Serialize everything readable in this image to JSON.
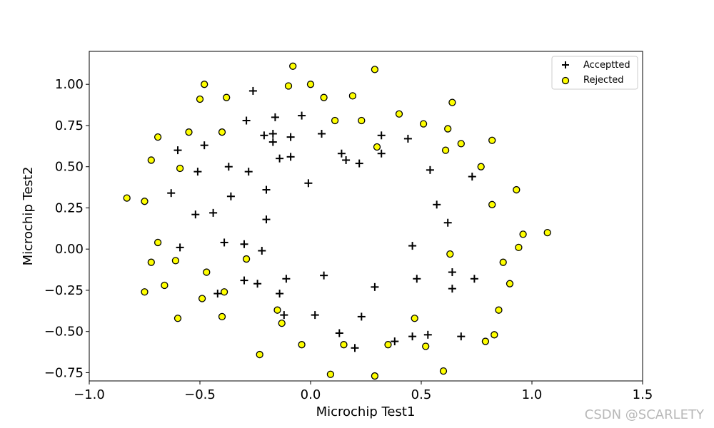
{
  "chart_data": {
    "type": "scatter",
    "title": "",
    "xlabel": "Microchip Test1",
    "ylabel": "Microchip Test2",
    "xlim": [
      -1.0,
      1.5
    ],
    "ylim": [
      -0.8,
      1.2
    ],
    "xticks": [
      -1.0,
      -0.5,
      0.0,
      0.5,
      1.0,
      1.5
    ],
    "xtick_labels": [
      "−1.0",
      "−0.5",
      "0.0",
      "0.5",
      "1.0",
      "1.5"
    ],
    "yticks": [
      -0.75,
      -0.5,
      -0.25,
      0.0,
      0.25,
      0.5,
      0.75,
      1.0
    ],
    "ytick_labels": [
      "−0.75",
      "−0.50",
      "−0.25",
      "0.00",
      "0.25",
      "0.50",
      "0.75",
      "1.00"
    ],
    "grid": false,
    "legend_position": "top-right",
    "series": [
      {
        "name": "Acceptted",
        "marker": "plus",
        "color": "#000000",
        "points": [
          [
            -0.26,
            0.96
          ],
          [
            -0.29,
            0.78
          ],
          [
            -0.16,
            0.8
          ],
          [
            -0.04,
            0.81
          ],
          [
            -0.21,
            0.69
          ],
          [
            -0.17,
            0.7
          ],
          [
            -0.09,
            0.68
          ],
          [
            0.05,
            0.7
          ],
          [
            0.32,
            0.69
          ],
          [
            0.44,
            0.67
          ],
          [
            -0.48,
            0.63
          ],
          [
            -0.17,
            0.65
          ],
          [
            -0.6,
            0.6
          ],
          [
            0.14,
            0.58
          ],
          [
            0.32,
            0.58
          ],
          [
            -0.14,
            0.55
          ],
          [
            -0.09,
            0.56
          ],
          [
            0.16,
            0.54
          ],
          [
            0.22,
            0.52
          ],
          [
            -0.37,
            0.5
          ],
          [
            -0.51,
            0.47
          ],
          [
            -0.28,
            0.47
          ],
          [
            0.54,
            0.48
          ],
          [
            0.73,
            0.44
          ],
          [
            -0.01,
            0.4
          ],
          [
            -0.2,
            0.36
          ],
          [
            -0.63,
            0.34
          ],
          [
            -0.36,
            0.32
          ],
          [
            -0.52,
            0.21
          ],
          [
            -0.44,
            0.22
          ],
          [
            0.57,
            0.27
          ],
          [
            -0.2,
            0.18
          ],
          [
            0.62,
            0.16
          ],
          [
            -0.39,
            0.04
          ],
          [
            -0.3,
            0.03
          ],
          [
            -0.59,
            0.01
          ],
          [
            -0.22,
            -0.01
          ],
          [
            0.46,
            0.02
          ],
          [
            -0.11,
            -0.18
          ],
          [
            0.06,
            -0.16
          ],
          [
            0.48,
            -0.18
          ],
          [
            0.64,
            -0.14
          ],
          [
            0.74,
            -0.18
          ],
          [
            -0.3,
            -0.19
          ],
          [
            -0.24,
            -0.21
          ],
          [
            0.29,
            -0.23
          ],
          [
            0.64,
            -0.24
          ],
          [
            -0.42,
            -0.27
          ],
          [
            -0.14,
            -0.27
          ],
          [
            -0.12,
            -0.4
          ],
          [
            0.02,
            -0.4
          ],
          [
            0.23,
            -0.41
          ],
          [
            0.13,
            -0.51
          ],
          [
            0.46,
            -0.53
          ],
          [
            0.53,
            -0.52
          ],
          [
            0.68,
            -0.53
          ],
          [
            0.2,
            -0.6
          ],
          [
            0.38,
            -0.56
          ]
        ]
      },
      {
        "name": "Rejected",
        "marker": "circle",
        "color": "#ffff00",
        "edge_color": "#000000",
        "points": [
          [
            -0.08,
            1.11
          ],
          [
            0.29,
            1.09
          ],
          [
            -0.48,
            1.0
          ],
          [
            -0.1,
            0.99
          ],
          [
            0.0,
            1.0
          ],
          [
            0.19,
            0.93
          ],
          [
            -0.5,
            0.91
          ],
          [
            -0.38,
            0.92
          ],
          [
            0.06,
            0.92
          ],
          [
            0.64,
            0.89
          ],
          [
            0.4,
            0.82
          ],
          [
            -0.4,
            0.71
          ],
          [
            0.11,
            0.78
          ],
          [
            0.23,
            0.78
          ],
          [
            0.51,
            0.76
          ],
          [
            0.62,
            0.73
          ],
          [
            -0.55,
            0.71
          ],
          [
            -0.69,
            0.68
          ],
          [
            0.82,
            0.66
          ],
          [
            0.68,
            0.64
          ],
          [
            0.3,
            0.62
          ],
          [
            0.61,
            0.6
          ],
          [
            -0.72,
            0.54
          ],
          [
            0.77,
            0.5
          ],
          [
            -0.59,
            0.49
          ],
          [
            0.93,
            0.36
          ],
          [
            -0.83,
            0.31
          ],
          [
            -0.75,
            0.29
          ],
          [
            0.82,
            0.27
          ],
          [
            1.07,
            0.1
          ],
          [
            0.96,
            0.09
          ],
          [
            -0.69,
            0.04
          ],
          [
            0.94,
            0.01
          ],
          [
            0.63,
            -0.03
          ],
          [
            -0.29,
            -0.06
          ],
          [
            -0.61,
            -0.07
          ],
          [
            -0.72,
            -0.08
          ],
          [
            0.87,
            -0.08
          ],
          [
            -0.47,
            -0.14
          ],
          [
            -0.66,
            -0.22
          ],
          [
            0.9,
            -0.21
          ],
          [
            -0.75,
            -0.26
          ],
          [
            -0.39,
            -0.26
          ],
          [
            -0.49,
            -0.3
          ],
          [
            -0.15,
            -0.37
          ],
          [
            0.85,
            -0.37
          ],
          [
            -0.4,
            -0.41
          ],
          [
            -0.6,
            -0.42
          ],
          [
            0.47,
            -0.42
          ],
          [
            -0.13,
            -0.45
          ],
          [
            0.83,
            -0.52
          ],
          [
            0.79,
            -0.56
          ],
          [
            -0.04,
            -0.58
          ],
          [
            0.15,
            -0.58
          ],
          [
            0.35,
            -0.58
          ],
          [
            0.52,
            -0.59
          ],
          [
            -0.23,
            -0.64
          ],
          [
            0.09,
            -0.76
          ],
          [
            0.29,
            -0.77
          ],
          [
            0.6,
            -0.74
          ]
        ]
      }
    ]
  },
  "watermark": "CSDN @SCARLETY"
}
